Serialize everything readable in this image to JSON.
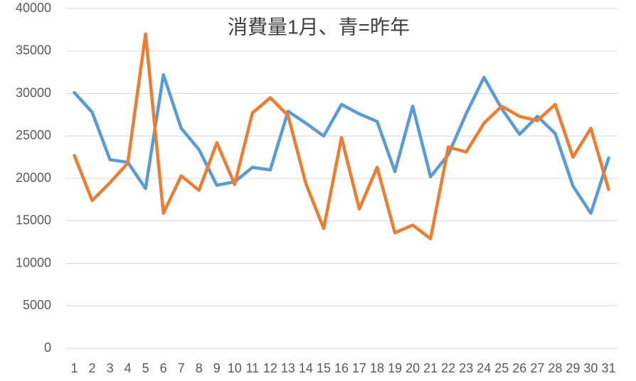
{
  "chart_data": {
    "type": "line",
    "title": "消費量1月、青=昨年",
    "categories": [
      "1",
      "2",
      "3",
      "4",
      "5",
      "6",
      "7",
      "8",
      "9",
      "10",
      "11",
      "12",
      "13",
      "14",
      "15",
      "16",
      "17",
      "18",
      "19",
      "20",
      "21",
      "22",
      "23",
      "24",
      "25",
      "26",
      "27",
      "28",
      "29",
      "30",
      "31"
    ],
    "series": [
      {
        "color": "#5b9bd5",
        "values": [
          30100,
          27800,
          22200,
          21900,
          18800,
          32200,
          25900,
          23400,
          19200,
          19600,
          21300,
          21000,
          27900,
          26500,
          25000,
          28700,
          27600,
          26700,
          20800,
          28500,
          20200,
          22800,
          27600,
          31900,
          28200,
          25200,
          27300,
          25300,
          19100,
          15900,
          22400
        ]
      },
      {
        "color": "#ed7d31",
        "values": [
          22700,
          17400,
          19500,
          21800,
          37000,
          15900,
          20300,
          18600,
          24200,
          19300,
          27700,
          29500,
          27400,
          19400,
          14100,
          24800,
          16400,
          21300,
          13600,
          14500,
          12900,
          23700,
          23100,
          26500,
          28500,
          27300,
          26800,
          28700,
          22500,
          25900,
          18700
        ]
      }
    ],
    "ylim": [
      0,
      40000
    ],
    "yticks": [
      0,
      5000,
      10000,
      15000,
      20000,
      25000,
      30000,
      35000,
      40000
    ],
    "grid": true
  }
}
